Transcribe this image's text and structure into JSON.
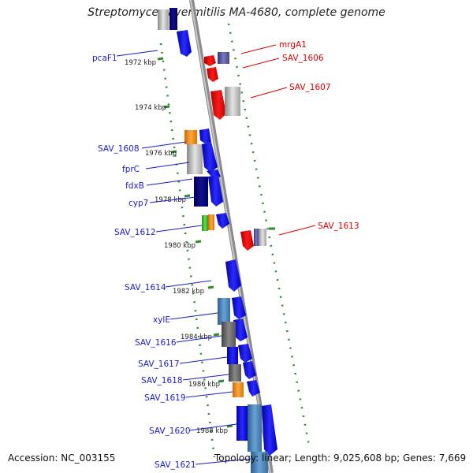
{
  "title": "Streptomyces avermitilis MA-4680, complete genome",
  "accession_text": "Accession: NC_003155",
  "topology_text": "Topology: linear; Length: 9,025,608 bp; Genes: 7,669",
  "colors": {
    "axis": "#9a9a9a",
    "axis_dark": "#555555",
    "tick": "#2e8b2e",
    "left_label": "#1a1acc",
    "right_label": "#dd0000"
  },
  "scale_labels": [
    "1972 kbp",
    "1974 kbp",
    "1976 kbp",
    "1978 kbp",
    "1980 kbp",
    "1982 kbp",
    "1984 kbp",
    "1986 kbp",
    "1988 kbp"
  ],
  "left_genes": [
    "pcaF1",
    "SAV_1608",
    "fprC",
    "fdxB",
    "cyp7",
    "SAV_1612",
    "SAV_1614",
    "xylE",
    "SAV_1616",
    "SAV_1617",
    "SAV_1618",
    "SAV_1619",
    "SAV_1620",
    "SAV_1621"
  ],
  "right_genes": [
    "mrgA1",
    "SAV_1606",
    "SAV_1607",
    "SAV_1613"
  ]
}
